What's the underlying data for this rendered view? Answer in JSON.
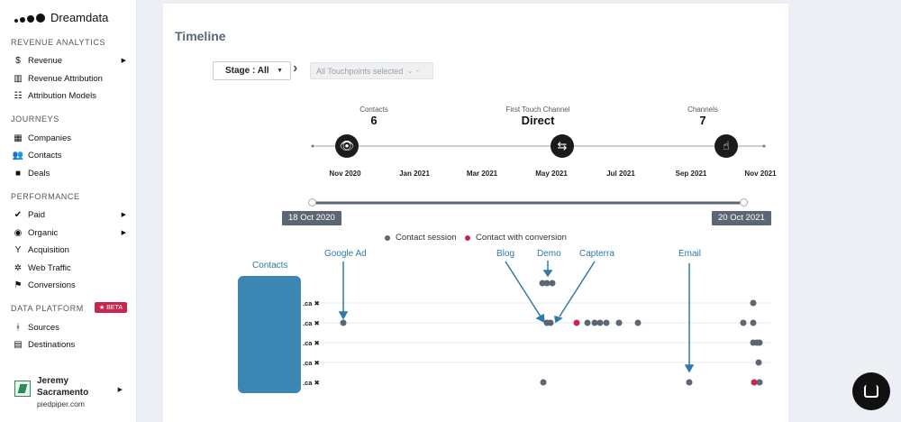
{
  "brand": {
    "name": "Dreamdata"
  },
  "sidebar": {
    "sections": [
      {
        "title": "REVENUE ANALYTICS",
        "items": [
          {
            "label": "Revenue",
            "icon": "dollar-icon",
            "has_submenu": true
          },
          {
            "label": "Revenue Attribution",
            "icon": "bar-chart-icon",
            "has_submenu": false
          },
          {
            "label": "Attribution Models",
            "icon": "model-icon",
            "has_submenu": false
          }
        ]
      },
      {
        "title": "JOURNEYS",
        "items": [
          {
            "label": "Companies",
            "icon": "building-icon",
            "has_submenu": false
          },
          {
            "label": "Contacts",
            "icon": "users-icon",
            "has_submenu": false
          },
          {
            "label": "Deals",
            "icon": "briefcase-icon",
            "has_submenu": false
          }
        ]
      },
      {
        "title": "PERFORMANCE",
        "items": [
          {
            "label": "Paid",
            "icon": "check-circle-icon",
            "has_submenu": true
          },
          {
            "label": "Organic",
            "icon": "pin-icon",
            "has_submenu": true
          },
          {
            "label": "Acquisition",
            "icon": "branch-icon",
            "has_submenu": false
          },
          {
            "label": "Web Traffic",
            "icon": "network-icon",
            "has_submenu": false
          },
          {
            "label": "Conversions",
            "icon": "flag-icon",
            "has_submenu": false
          }
        ]
      },
      {
        "title": "DATA PLATFORM",
        "badge": "BETA",
        "items": [
          {
            "label": "Sources",
            "icon": "git-icon",
            "has_submenu": false
          },
          {
            "label": "Destinations",
            "icon": "destination-icon",
            "has_submenu": false
          }
        ]
      }
    ],
    "user": {
      "name": "Jeremy Sacramento",
      "org": "piedpiper.com"
    }
  },
  "timeline": {
    "title": "Timeline",
    "stage_select": "Stage : All",
    "touchpoints_select": "All Touchpoints selected",
    "stats": [
      {
        "label": "Contacts",
        "value": "6"
      },
      {
        "label": "First Touch Channel",
        "value": "Direct"
      },
      {
        "label": "Channels",
        "value": "7"
      }
    ],
    "months": [
      "Nov 2020",
      "Jan 2021",
      "Mar 2021",
      "May 2021",
      "Jul 2021",
      "Sep 2021",
      "Nov 2021"
    ],
    "range_start": "18 Oct 2020",
    "range_end": "20 Oct 2021",
    "legend": [
      {
        "label": "Contact session",
        "color": "#5d6673"
      },
      {
        "label": "Contact with conversion",
        "color": "#c8264e"
      }
    ],
    "contacts_label": "Contacts",
    "row_suffix": ".ca ✖",
    "annotations": [
      "Google Ad",
      "Blog",
      "Demo",
      "Capterra",
      "Email"
    ]
  },
  "colors": {
    "session": "#5d6673",
    "conversion": "#c8264e",
    "annotation": "#2e7aa8"
  }
}
